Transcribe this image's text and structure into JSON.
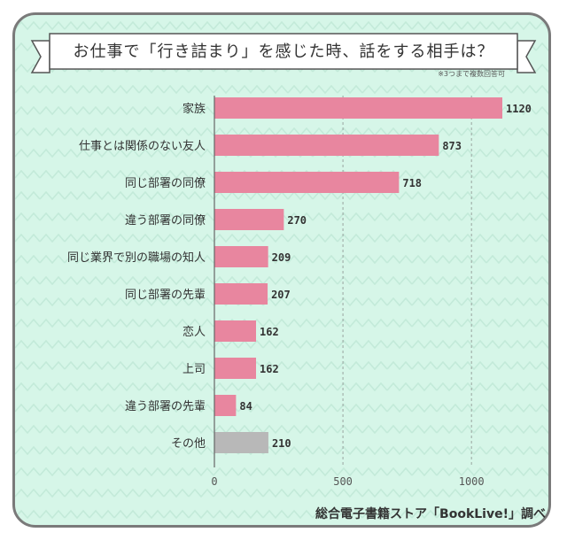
{
  "title": "お仕事で「行き詰まり」を感じた時、話をする相手は？",
  "note": "※3つまで複数回答可",
  "source": "総合電子書籍ストア「BookLive!」調べ",
  "colors": {
    "primary": "#e8869f",
    "other": "#b8b8b8",
    "background": "#d6f6e8",
    "zigzag": "#c3ead9"
  },
  "chart_data": {
    "type": "bar",
    "orientation": "horizontal",
    "categories": [
      "家族",
      "仕事とは関係のない友人",
      "同じ部署の同僚",
      "違う部署の同僚",
      "同じ業界で別の職場の知人",
      "同じ部署の先輩",
      "恋人",
      "上司",
      "違う部署の先輩",
      "その他"
    ],
    "values": [
      1120,
      873,
      718,
      270,
      209,
      207,
      162,
      162,
      84,
      210
    ],
    "xlim": [
      0,
      1120
    ],
    "xticks": [
      0,
      500,
      1000
    ],
    "grid": true
  }
}
